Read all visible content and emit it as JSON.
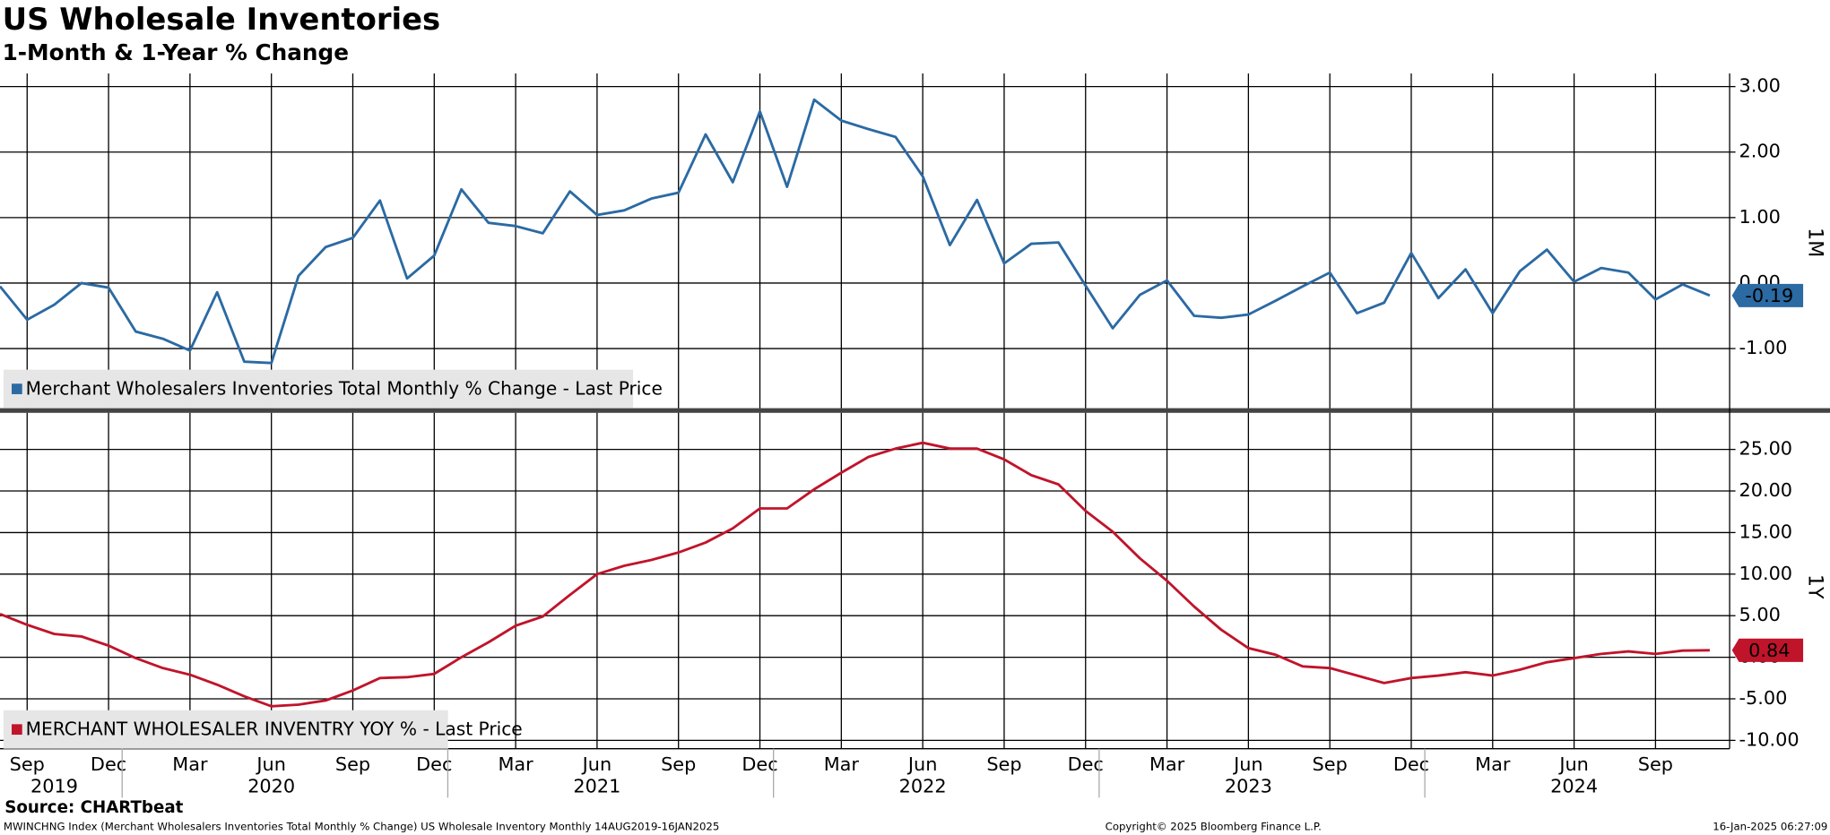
{
  "header": {
    "title": "US Wholesale Inventories",
    "subtitle": "1-Month & 1-Year % Change"
  },
  "footer": {
    "source": "Source: CHARTbeat",
    "ticker": "MWINCHNG Index (Merchant Wholesalers Inventories Total Monthly % Change) US Wholesale Inventory  Monthly 14AUG2019-16JAN2025",
    "copyright": "Copyright© 2025 Bloomberg Finance L.P.",
    "timestamp": "16-Jan-2025 06:27:09"
  },
  "chart_data": [
    {
      "type": "line",
      "axis_label": "1M",
      "x": [
        "2019-08",
        "2019-09",
        "2019-10",
        "2019-11",
        "2019-12",
        "2020-01",
        "2020-02",
        "2020-03",
        "2020-04",
        "2020-05",
        "2020-06",
        "2020-07",
        "2020-08",
        "2020-09",
        "2020-10",
        "2020-11",
        "2020-12",
        "2021-01",
        "2021-02",
        "2021-03",
        "2021-04",
        "2021-05",
        "2021-06",
        "2021-07",
        "2021-08",
        "2021-09",
        "2021-10",
        "2021-11",
        "2021-12",
        "2022-01",
        "2022-02",
        "2022-03",
        "2022-04",
        "2022-05",
        "2022-06",
        "2022-07",
        "2022-08",
        "2022-09",
        "2022-10",
        "2022-11",
        "2022-12",
        "2023-01",
        "2023-02",
        "2023-03",
        "2023-04",
        "2023-05",
        "2023-06",
        "2023-07",
        "2023-08",
        "2023-09",
        "2023-10",
        "2023-11",
        "2023-12",
        "2024-01",
        "2024-02",
        "2024-03",
        "2024-04",
        "2024-05",
        "2024-06",
        "2024-07",
        "2024-08",
        "2024-09",
        "2024-10",
        "2024-11"
      ],
      "series": [
        {
          "name": "Merchant Wholesalers Inventories Total Monthly % Change - Last Price",
          "color": "#2b6aa3",
          "values": [
            -0.05,
            -0.56,
            -0.33,
            0.0,
            -0.07,
            -0.74,
            -0.85,
            -1.03,
            -0.14,
            -1.2,
            -1.22,
            0.11,
            0.55,
            0.69,
            1.26,
            0.07,
            0.42,
            1.43,
            0.92,
            0.87,
            0.76,
            1.4,
            1.04,
            1.11,
            1.29,
            1.38,
            2.27,
            1.54,
            2.62,
            1.47,
            2.8,
            2.48,
            2.35,
            2.23,
            1.63,
            0.58,
            1.27,
            0.3,
            0.6,
            0.62,
            -0.04,
            -0.69,
            -0.18,
            0.04,
            -0.5,
            -0.53,
            -0.48,
            -0.27,
            -0.05,
            0.16,
            -0.46,
            -0.3,
            0.46,
            -0.23,
            0.21,
            -0.46,
            0.18,
            0.51,
            0.02,
            0.23,
            0.16,
            -0.25,
            -0.02,
            -0.19
          ]
        }
      ],
      "ylim": [
        -1.91,
        3.2
      ],
      "yticks": [
        {
          "value": 3,
          "label": "3.00"
        },
        {
          "value": 2,
          "label": "2.00"
        },
        {
          "value": 1,
          "label": "1.00"
        },
        {
          "value": 0,
          "label": "0.00"
        },
        {
          "value": -1,
          "label": "-1.00"
        }
      ],
      "grid": true
    },
    {
      "type": "line",
      "axis_label": "1Y",
      "x": [
        "2019-08",
        "2019-09",
        "2019-10",
        "2019-11",
        "2019-12",
        "2020-01",
        "2020-02",
        "2020-03",
        "2020-04",
        "2020-05",
        "2020-06",
        "2020-07",
        "2020-08",
        "2020-09",
        "2020-10",
        "2020-11",
        "2020-12",
        "2021-01",
        "2021-02",
        "2021-03",
        "2021-04",
        "2021-05",
        "2021-06",
        "2021-07",
        "2021-08",
        "2021-09",
        "2021-10",
        "2021-11",
        "2021-12",
        "2022-01",
        "2022-02",
        "2022-03",
        "2022-04",
        "2022-05",
        "2022-06",
        "2022-07",
        "2022-08",
        "2022-09",
        "2022-10",
        "2022-11",
        "2022-12",
        "2023-01",
        "2023-02",
        "2023-03",
        "2023-04",
        "2023-05",
        "2023-06",
        "2023-07",
        "2023-08",
        "2023-09",
        "2023-10",
        "2023-11",
        "2023-12",
        "2024-01",
        "2024-02",
        "2024-03",
        "2024-04",
        "2024-05",
        "2024-06",
        "2024-07",
        "2024-08",
        "2024-09",
        "2024-10",
        "2024-11"
      ],
      "series": [
        {
          "name": "MERCHANT WHOLESALER INVENTRY YOY % - Last Price",
          "color": "#c0142b",
          "values": [
            5.2,
            3.9,
            2.8,
            2.5,
            1.4,
            -0.1,
            -1.3,
            -2.1,
            -3.3,
            -4.7,
            -5.9,
            -5.7,
            -5.2,
            -4.0,
            -2.5,
            -2.4,
            -2.0,
            0.0,
            1.8,
            3.8,
            4.9,
            7.5,
            10.0,
            11.0,
            11.7,
            12.6,
            13.8,
            15.5,
            17.9,
            17.9,
            20.2,
            22.2,
            24.1,
            25.1,
            25.8,
            25.1,
            25.1,
            23.8,
            21.9,
            20.8,
            17.6,
            15.1,
            11.9,
            9.2,
            6.1,
            3.3,
            1.1,
            0.3,
            -1.1,
            -1.3,
            -2.2,
            -3.1,
            -2.5,
            -2.2,
            -1.8,
            -2.2,
            -1.5,
            -0.6,
            -0.1,
            0.4,
            0.7,
            0.4,
            0.8,
            0.84
          ]
        }
      ],
      "ylim": [
        -11.0,
        29.4
      ],
      "yticks": [
        {
          "value": 25,
          "label": "25.00"
        },
        {
          "value": 20,
          "label": "20.00"
        },
        {
          "value": 15,
          "label": "15.00"
        },
        {
          "value": 10,
          "label": "10.00"
        },
        {
          "value": 5,
          "label": "5.00"
        },
        {
          "value": 0,
          "label": "0.00"
        },
        {
          "value": -5,
          "label": "-5.00"
        },
        {
          "value": -10,
          "label": "-10.00"
        }
      ],
      "grid": true,
      "xticks": [
        {
          "value": "2019-09",
          "label": "Sep"
        },
        {
          "value": "2019-12",
          "label": "Dec"
        },
        {
          "value": "2020-03",
          "label": "Mar"
        },
        {
          "value": "2020-06",
          "label": "Jun"
        },
        {
          "value": "2020-09",
          "label": "Sep"
        },
        {
          "value": "2020-12",
          "label": "Dec"
        },
        {
          "value": "2021-03",
          "label": "Mar"
        },
        {
          "value": "2021-06",
          "label": "Jun"
        },
        {
          "value": "2021-09",
          "label": "Sep"
        },
        {
          "value": "2021-12",
          "label": "Dec"
        },
        {
          "value": "2022-03",
          "label": "Mar"
        },
        {
          "value": "2022-06",
          "label": "Jun"
        },
        {
          "value": "2022-09",
          "label": "Sep"
        },
        {
          "value": "2022-12",
          "label": "Dec"
        },
        {
          "value": "2023-03",
          "label": "Mar"
        },
        {
          "value": "2023-06",
          "label": "Jun"
        },
        {
          "value": "2023-09",
          "label": "Sep"
        },
        {
          "value": "2023-12",
          "label": "Dec"
        },
        {
          "value": "2024-03",
          "label": "Mar"
        },
        {
          "value": "2024-06",
          "label": "Jun"
        },
        {
          "value": "2024-09",
          "label": "Sep"
        }
      ],
      "year_labels": [
        {
          "value": "2019-10",
          "label": "2019"
        },
        {
          "value": "2020-06",
          "label": "2020"
        },
        {
          "value": "2021-06",
          "label": "2021"
        },
        {
          "value": "2022-06",
          "label": "2022"
        },
        {
          "value": "2023-06",
          "label": "2023"
        },
        {
          "value": "2024-06",
          "label": "2024"
        }
      ]
    }
  ]
}
